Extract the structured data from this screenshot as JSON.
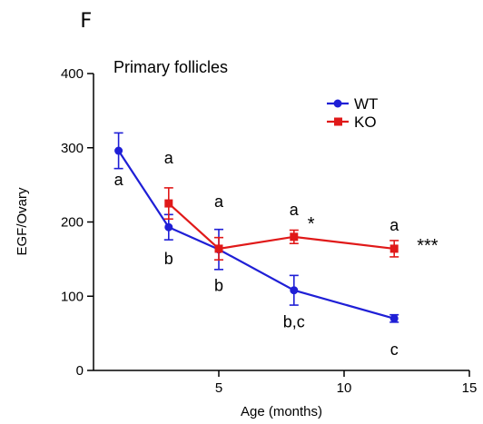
{
  "panel_label": "F",
  "chart_data": {
    "type": "line",
    "title": "Primary follicles",
    "xlabel": "Age (months)",
    "ylabel": "EGF/Ovary",
    "xlim": [
      0,
      15
    ],
    "ylim": [
      0,
      400
    ],
    "x_ticks": [
      5,
      10,
      15
    ],
    "y_ticks": [
      0,
      100,
      200,
      300,
      400
    ],
    "legend": "top-right",
    "grid": false,
    "series": [
      {
        "name": "WT",
        "color": "#1f1fd6",
        "marker": "circle",
        "x": [
          1,
          3,
          5,
          8,
          12
        ],
        "y": [
          296,
          193,
          163,
          108,
          70
        ],
        "error": [
          24,
          17,
          27,
          20,
          5
        ]
      },
      {
        "name": "KO",
        "color": "#e01919",
        "marker": "square",
        "x": [
          3,
          5,
          8,
          12
        ],
        "y": [
          225,
          164,
          180,
          164
        ],
        "error": [
          21,
          15,
          9,
          11
        ]
      }
    ],
    "annotations": [
      {
        "series": "WT",
        "x": 1,
        "text": "a"
      },
      {
        "series": "WT",
        "x": 3,
        "text": "b"
      },
      {
        "series": "WT",
        "x": 5,
        "text": "b"
      },
      {
        "series": "WT",
        "x": 8,
        "text": "b,c"
      },
      {
        "series": "WT",
        "x": 12,
        "text": "c"
      },
      {
        "series": "KO",
        "x": 3,
        "text": "a"
      },
      {
        "series": "KO",
        "x": 5,
        "text": "a"
      },
      {
        "series": "KO",
        "x": 8,
        "text": "a"
      },
      {
        "series": "KO",
        "x": 12,
        "text": "a"
      },
      {
        "series": "KO",
        "x": 8,
        "text": "*"
      },
      {
        "series": "KO",
        "x": 12,
        "text": "***"
      }
    ]
  }
}
